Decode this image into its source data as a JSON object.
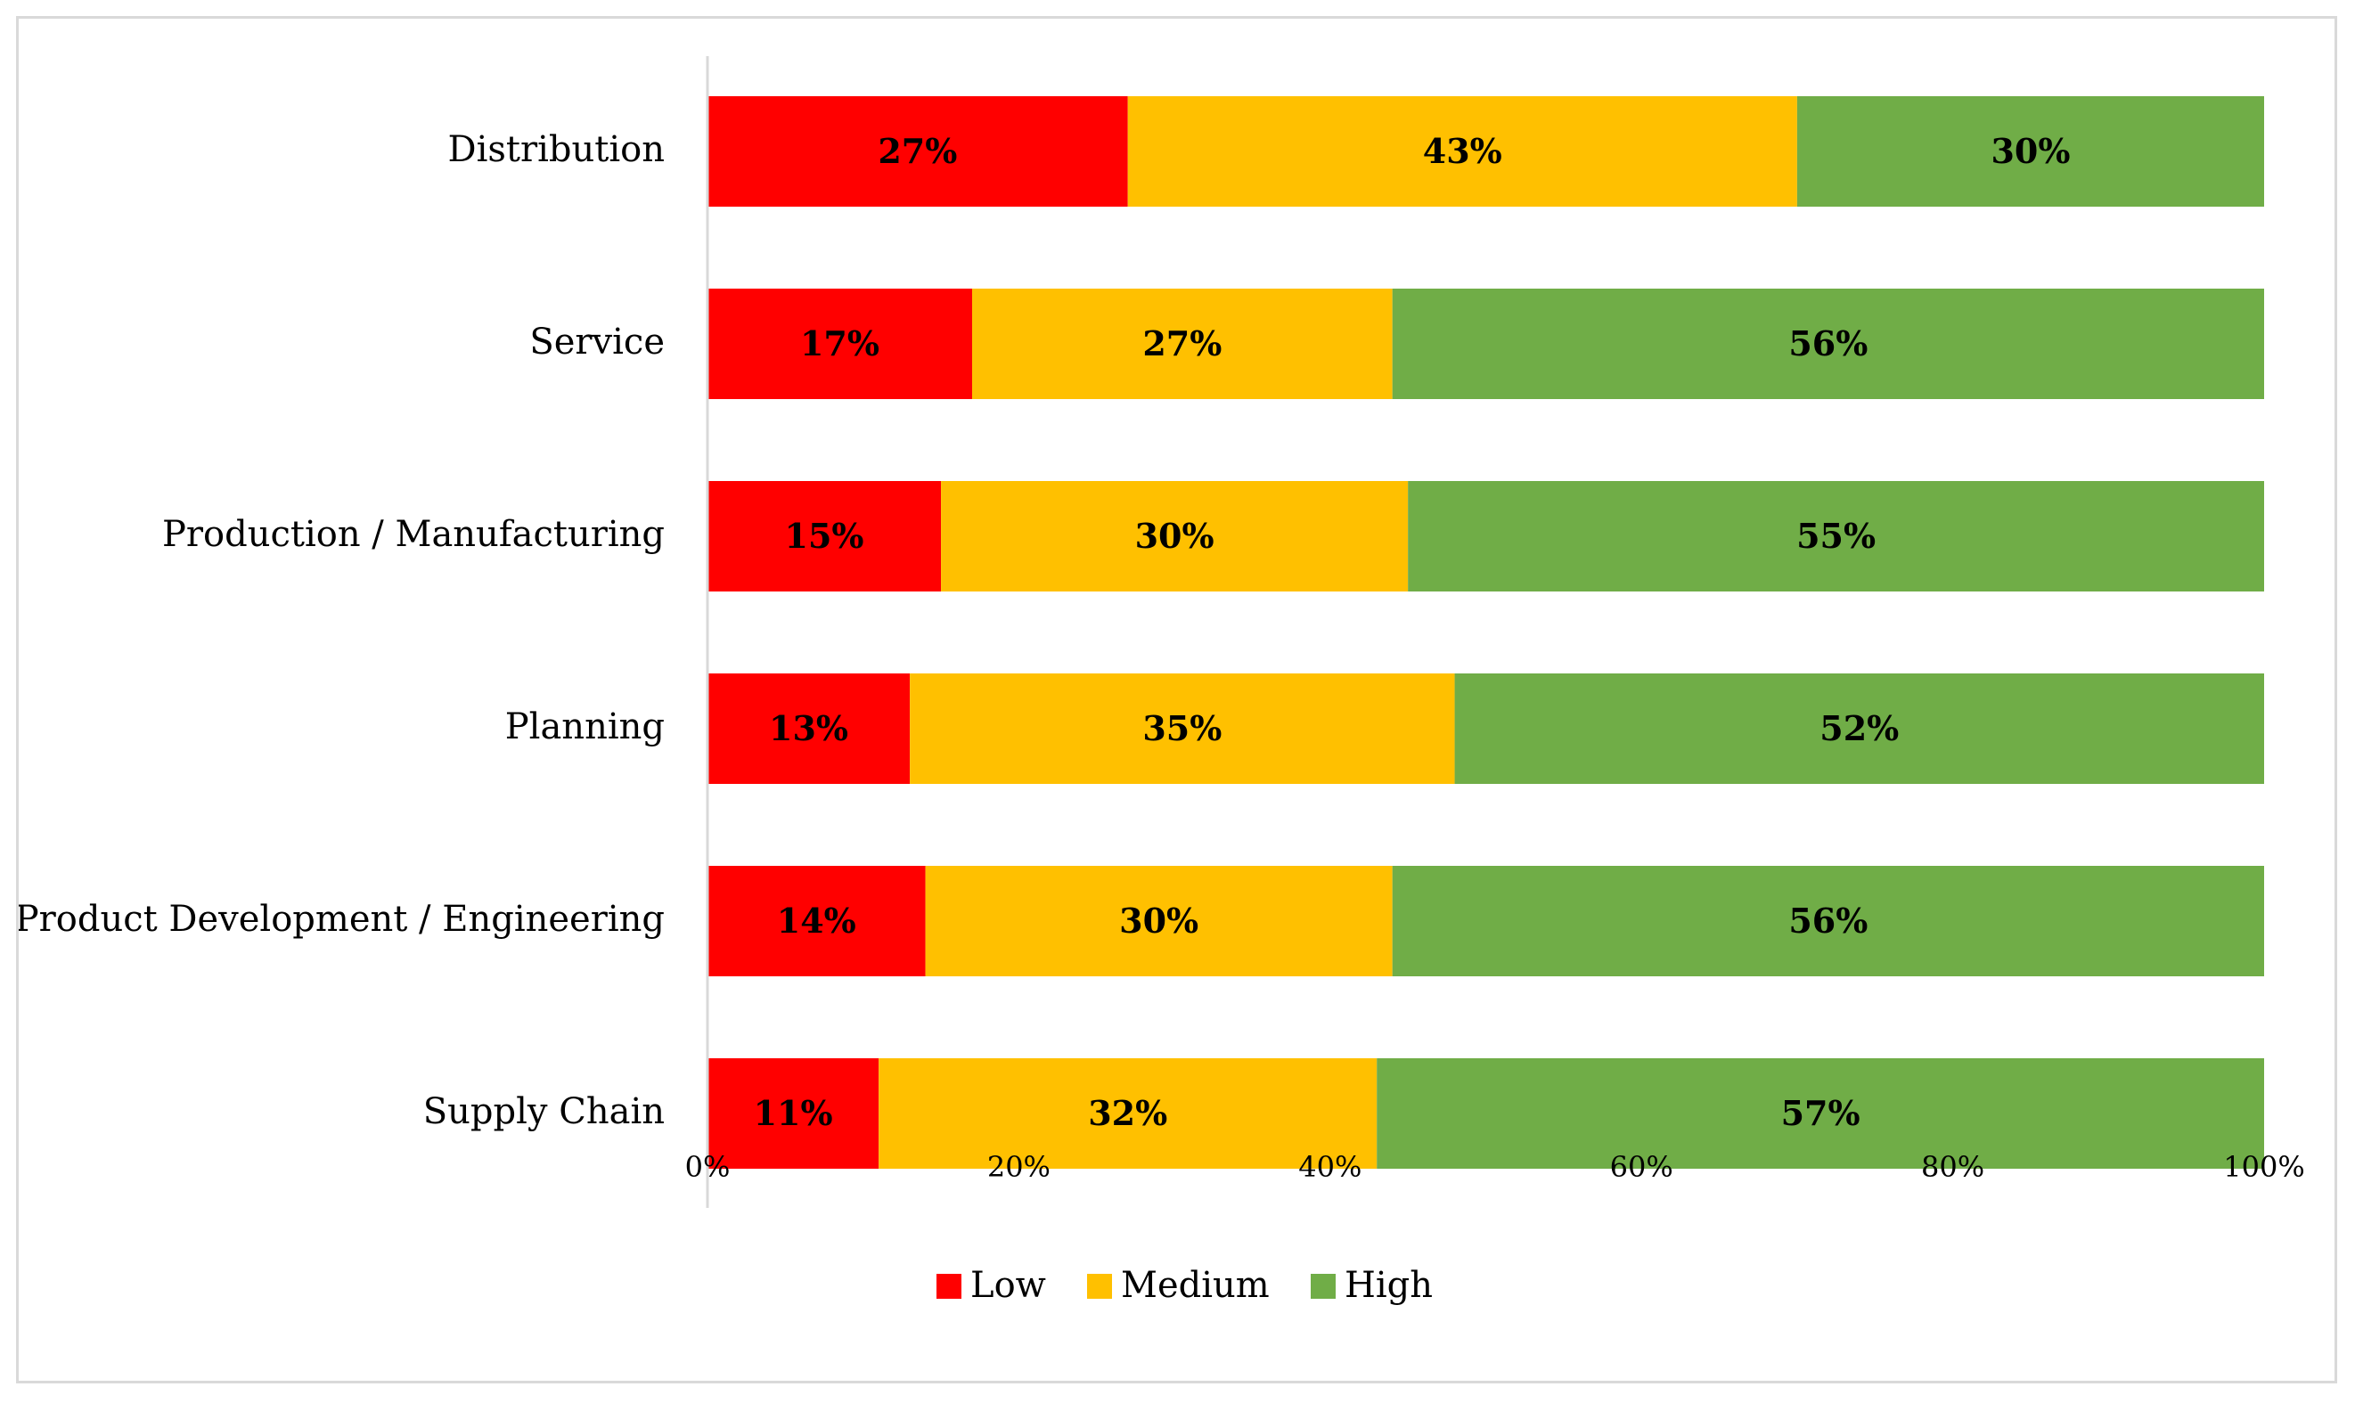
{
  "chart_data": {
    "type": "bar",
    "orientation": "horizontal",
    "stacked": true,
    "categories": [
      "Distribution",
      "Service",
      "Production / Manufacturing",
      "Planning",
      "Product Development / Engineering",
      "Supply Chain"
    ],
    "series": [
      {
        "name": "Low",
        "color": "#ff0000",
        "values": [
          27,
          17,
          15,
          13,
          14,
          11
        ],
        "labels": [
          "27%",
          "17%",
          "15%",
          "13%",
          "14%",
          "11%"
        ]
      },
      {
        "name": "Medium",
        "color": "#ffc000",
        "values": [
          43,
          27,
          30,
          35,
          30,
          32
        ],
        "labels": [
          "43%",
          "27%",
          "30%",
          "35%",
          "30%",
          "32%"
        ]
      },
      {
        "name": "High",
        "color": "#70ad47",
        "values": [
          30,
          56,
          55,
          52,
          56,
          57
        ],
        "labels": [
          "30%",
          "56%",
          "55%",
          "52%",
          "56%",
          "57%"
        ]
      }
    ],
    "xlim": [
      0,
      100
    ],
    "x_ticks": [
      "0%",
      "20%",
      "40%",
      "60%",
      "80%",
      "100%"
    ],
    "title": "",
    "xlabel": "",
    "ylabel": "",
    "grid": false,
    "legend_position": "bottom"
  }
}
